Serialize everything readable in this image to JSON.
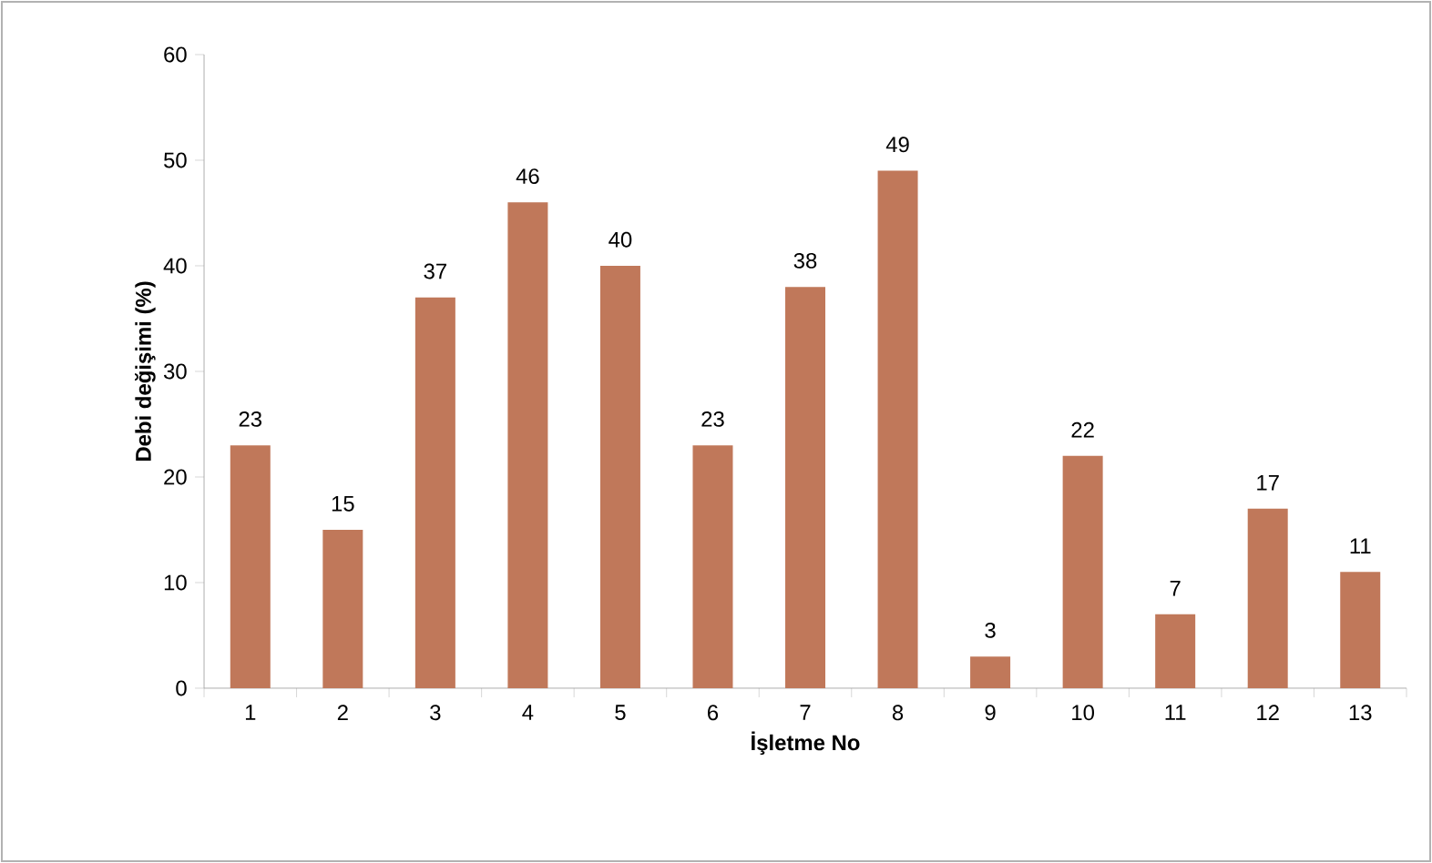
{
  "chart_data": {
    "type": "bar",
    "xlabel": "İşletme No",
    "ylabel": "Debi değişimi (%)",
    "categories": [
      "1",
      "2",
      "3",
      "4",
      "5",
      "6",
      "7",
      "8",
      "9",
      "10",
      "11",
      "12",
      "13"
    ],
    "values": [
      23,
      15,
      37,
      46,
      40,
      23,
      38,
      49,
      3,
      22,
      7,
      17,
      11
    ],
    "color": "#c0785a",
    "ylim": [
      0,
      60
    ],
    "yticks": [
      0,
      10,
      20,
      30,
      40,
      50,
      60
    ],
    "data_labels": true
  }
}
